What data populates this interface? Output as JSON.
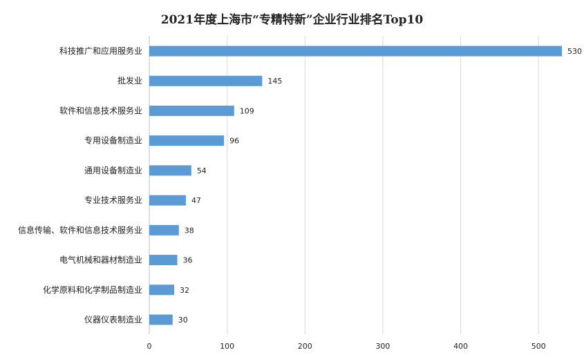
{
  "chart_data": {
    "type": "bar",
    "orientation": "horizontal",
    "title": "2021年度上海市“专精特新”企业行业排名Top10",
    "categories": [
      "科技推广和应用服务业",
      "批发业",
      "软件和信息技术服务业",
      "专用设备制造业",
      "通用设备制造业",
      "专业技术服务业",
      "信息传输、软件和信息技术服务业",
      "电气机械和器材制造业",
      "化学原料和化学制品制造业",
      "仪器仪表制造业"
    ],
    "values": [
      530,
      145,
      109,
      96,
      54,
      47,
      38,
      36,
      32,
      30
    ],
    "xlim": [
      0,
      530
    ],
    "xticks": [
      "0",
      "100",
      "200",
      "300",
      "400",
      "500"
    ],
    "grid": true,
    "bar_color": "#5b9bd5",
    "legend": "none"
  }
}
